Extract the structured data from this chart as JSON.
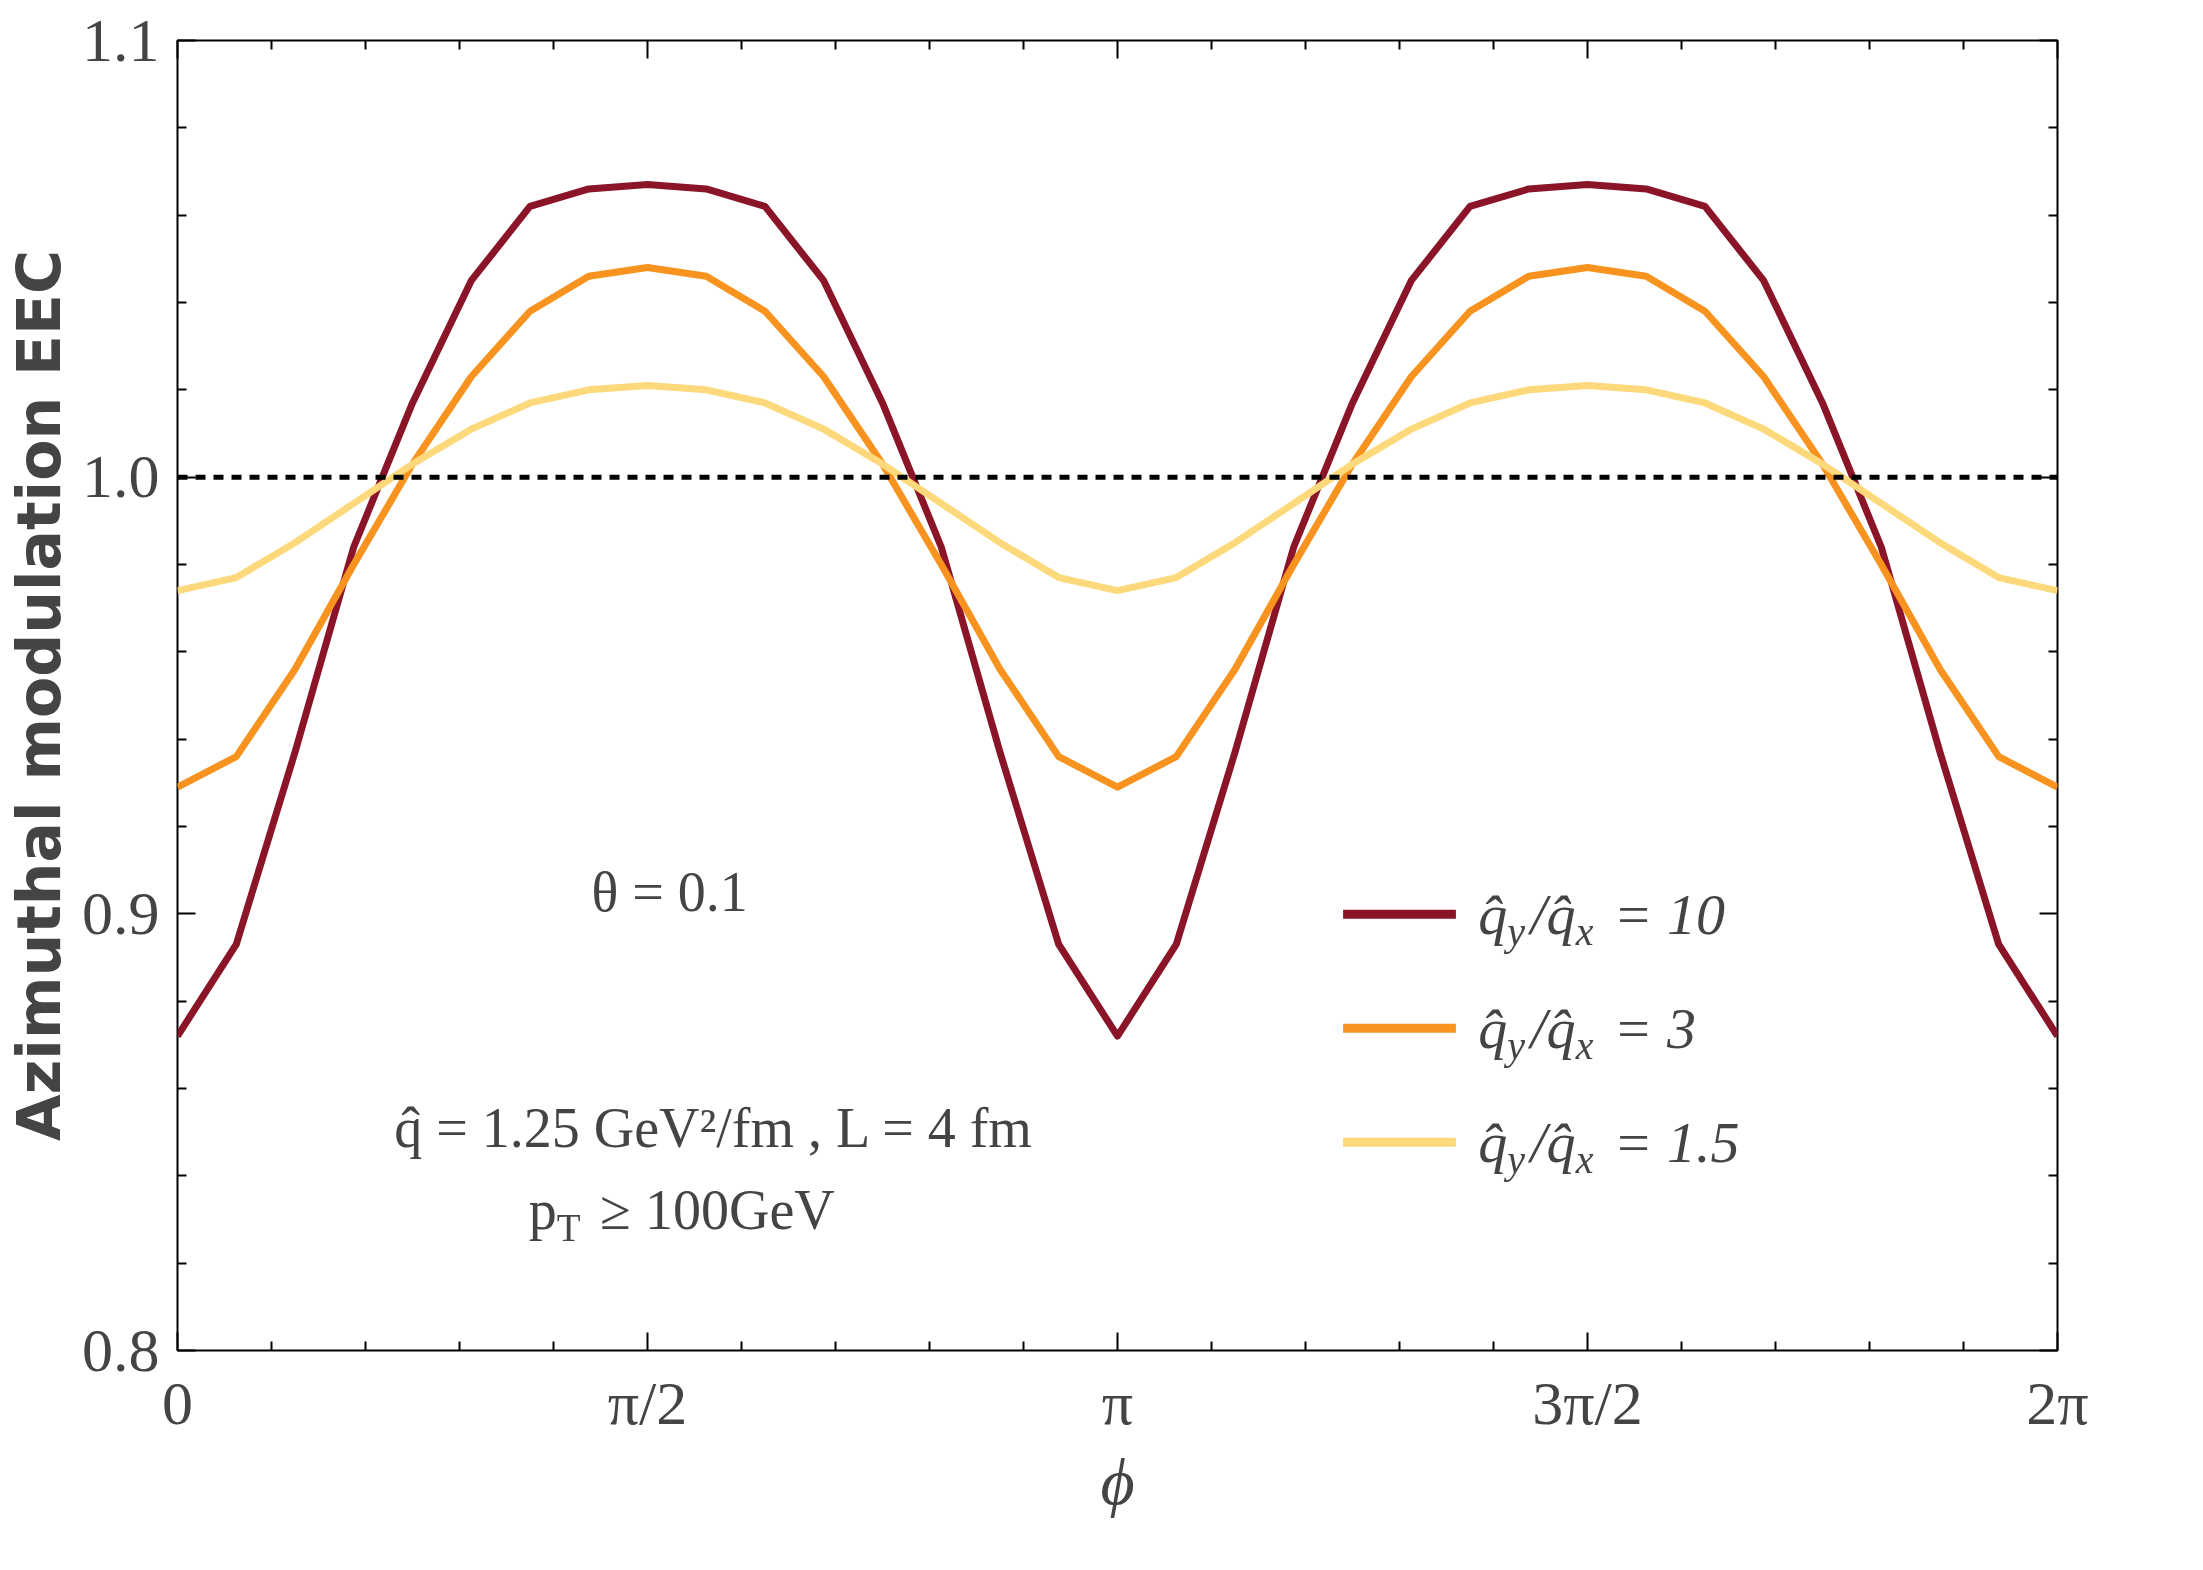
{
  "chart_data": {
    "type": "line",
    "xlabel": "ϕ",
    "ylabel": "Azimuthal modulation EEC",
    "x": [
      0,
      0.1963,
      0.3927,
      0.589,
      0.7854,
      0.9817,
      1.1781,
      1.3744,
      1.5708,
      1.7671,
      1.9635,
      2.1598,
      2.3562,
      2.5525,
      2.7489,
      2.9452,
      3.1416,
      3.3379,
      3.5343,
      3.7306,
      3.927,
      4.1233,
      4.3197,
      4.516,
      4.7124,
      4.9087,
      5.1051,
      5.3014,
      5.4978,
      5.6941,
      5.8905,
      6.0868,
      6.2832
    ],
    "series": [
      {
        "name": "q̂$_{y}$/q̂$_{x}$ = 10",
        "color": "#8b1528",
        "values": [
          0.872,
          0.893,
          0.937,
          0.984,
          1.017,
          1.045,
          1.062,
          1.066,
          1.067,
          1.066,
          1.062,
          1.045,
          1.017,
          0.984,
          0.937,
          0.893,
          0.872,
          0.893,
          0.937,
          0.984,
          1.017,
          1.045,
          1.062,
          1.066,
          1.067,
          1.066,
          1.062,
          1.045,
          1.017,
          0.984,
          0.937,
          0.893,
          0.872
        ]
      },
      {
        "name": "q̂$_{y}$/q̂$_{x}$ = 3",
        "color": "#f7931e",
        "values": [
          0.929,
          0.936,
          0.956,
          0.98,
          1.003,
          1.023,
          1.038,
          1.046,
          1.048,
          1.046,
          1.038,
          1.023,
          1.003,
          0.98,
          0.956,
          0.936,
          0.929,
          0.936,
          0.956,
          0.98,
          1.003,
          1.023,
          1.038,
          1.046,
          1.048,
          1.046,
          1.038,
          1.023,
          1.003,
          0.98,
          0.956,
          0.936,
          0.929
        ]
      },
      {
        "name": "q̂$_{y}$/q̂$_{x}$ = 1.5",
        "color": "#fdd97c",
        "values": [
          0.974,
          0.977,
          0.985,
          0.994,
          1.003,
          1.011,
          1.017,
          1.02,
          1.021,
          1.02,
          1.017,
          1.011,
          1.003,
          0.994,
          0.985,
          0.977,
          0.974,
          0.977,
          0.985,
          0.994,
          1.003,
          1.011,
          1.017,
          1.02,
          1.021,
          1.02,
          1.017,
          1.011,
          1.003,
          0.994,
          0.985,
          0.977,
          0.974
        ]
      }
    ],
    "xlim": [
      0,
      6.2832
    ],
    "ylim": [
      0.8,
      1.1
    ],
    "xticks": [
      0,
      {
        "value": 1.5708,
        "label": "π/2"
      },
      {
        "value": 3.1416,
        "label": "π"
      },
      {
        "value": 4.7124,
        "label": "3π/2"
      },
      {
        "value": 6.2832,
        "label": "2π"
      }
    ],
    "yticks": [
      {
        "value": 0.8,
        "label": "0.8"
      },
      {
        "value": 0.9,
        "label": "0.9"
      },
      {
        "value": 1.0,
        "label": "1.0"
      },
      {
        "value": 1.1,
        "label": "1.1"
      }
    ],
    "ref_lines": [
      {
        "axis": "y",
        "value": 1.0,
        "color": "#000000",
        "line_style": "dashed"
      }
    ],
    "annotations": [
      "θ = 0.1",
      "q̂ = 1.25 GeV²/fm , L = 4 fm",
      "p$_{T}$ ≥ 100GeV"
    ],
    "legend": "bottom right",
    "marker": "none",
    "line_style": "solid"
  }
}
